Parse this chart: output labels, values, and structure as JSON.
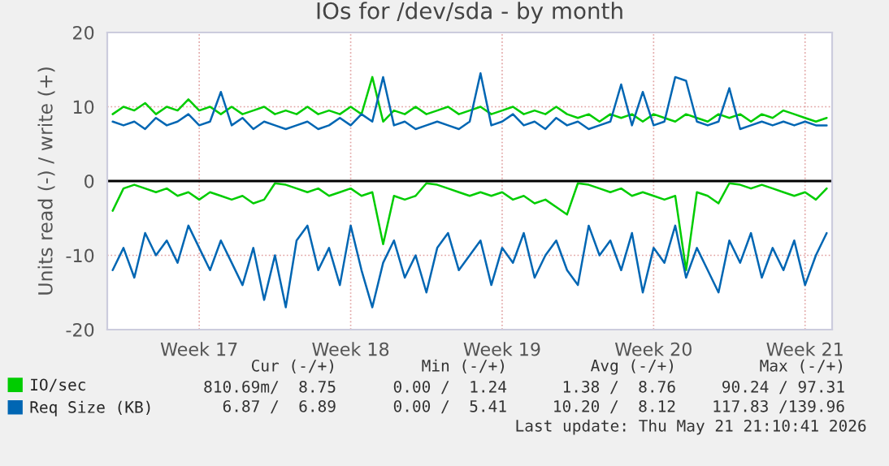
{
  "chart_data": {
    "type": "line",
    "title": "IOs for /dev/sda - by month",
    "ylabel": "Units read (-) / write (+)",
    "categories": [
      null,
      null,
      null,
      null,
      null,
      null,
      null,
      null,
      "Week 17",
      null,
      null,
      null,
      null,
      null,
      null,
      null,
      null,
      null,
      null,
      null,
      null,
      null,
      "Week 18",
      null,
      null,
      null,
      null,
      null,
      null,
      null,
      null,
      null,
      null,
      null,
      null,
      null,
      "Week 19",
      null,
      null,
      null,
      null,
      null,
      null,
      null,
      null,
      null,
      null,
      null,
      null,
      null,
      "Week 20",
      null,
      null,
      null,
      null,
      null,
      null,
      null,
      null,
      null,
      null,
      null,
      null,
      null,
      "Week 21",
      null,
      null
    ],
    "series": [
      {
        "name": "IO/sec",
        "color": "#00cc00",
        "values": [
          9,
          10,
          9.5,
          10.5,
          9,
          10,
          9.5,
          11,
          9.5,
          10,
          9,
          10,
          9,
          9.5,
          10,
          9,
          9.5,
          9,
          10,
          9,
          9.5,
          9,
          10,
          9,
          14,
          8,
          9.5,
          9,
          10,
          9,
          9.5,
          10,
          9,
          9.5,
          10,
          9,
          9.5,
          10,
          9,
          9.5,
          9,
          10,
          9,
          8.5,
          9,
          8,
          9,
          8.5,
          9,
          8,
          9,
          8.5,
          8,
          9,
          8.5,
          8,
          9,
          8.5,
          9,
          8,
          9,
          8.5,
          9.5,
          9,
          8.5,
          8,
          8.5
        ]
      },
      {
        "color": "#00cc00",
        "values": [
          -4,
          -1,
          -0.5,
          -1,
          -1.5,
          -1,
          -2,
          -1.5,
          -2.5,
          -1.5,
          -2,
          -2.5,
          -2,
          -3,
          -2.5,
          -0.3,
          -0.5,
          -1,
          -1.5,
          -1,
          -2,
          -1.5,
          -1,
          -2,
          -1.5,
          -8.5,
          -2,
          -2.5,
          -2,
          -0.3,
          -0.5,
          -1,
          -1.5,
          -2,
          -1.5,
          -2,
          -1.5,
          -2.5,
          -2,
          -3,
          -2.5,
          -3.5,
          -4.5,
          -0.3,
          -0.5,
          -1,
          -1.5,
          -1,
          -2,
          -1.5,
          -2,
          -2.5,
          -2,
          -12,
          -1.5,
          -2,
          -3,
          -0.3,
          -0.5,
          -1,
          -0.5,
          -1,
          -1.5,
          -2,
          -1.5,
          -2.5,
          -1
        ]
      },
      {
        "name": "Req Size (KB)",
        "color": "#0066b3",
        "values": [
          8,
          7.5,
          8,
          7,
          8.5,
          7.5,
          8,
          9,
          7.5,
          8,
          12,
          7.5,
          8.5,
          7,
          8,
          7.5,
          7,
          7.5,
          8,
          7,
          7.5,
          8.5,
          7.5,
          9,
          8,
          14,
          7.5,
          8,
          7,
          7.5,
          8,
          7.5,
          7,
          8,
          14.5,
          7.5,
          8,
          9,
          7.5,
          8,
          7,
          8.5,
          7.5,
          8,
          7,
          7.5,
          8,
          13,
          7.5,
          12,
          7.5,
          8,
          14,
          13.5,
          8,
          7.5,
          8,
          12.5,
          7,
          7.5,
          8,
          7.5,
          8,
          7.5,
          8,
          7.5,
          7.5
        ]
      },
      {
        "color": "#0066b3",
        "values": [
          -12,
          -9,
          -13,
          -7,
          -10,
          -8,
          -11,
          -6,
          -9,
          -12,
          -8,
          -11,
          -14,
          -9,
          -16,
          -10,
          -17,
          -8,
          -6,
          -12,
          -9,
          -14,
          -6,
          -12,
          -17,
          -11,
          -8,
          -13,
          -10,
          -15,
          -9,
          -7,
          -12,
          -10,
          -8,
          -14,
          -9,
          -11,
          -7,
          -13,
          -10,
          -8,
          -12,
          -14,
          -6,
          -10,
          -8,
          -12,
          -7,
          -15,
          -9,
          -11,
          -6,
          -13,
          -9,
          -12,
          -15,
          -8,
          -11,
          -7,
          -13,
          -9,
          -12,
          -8,
          -14,
          -10,
          -7
        ]
      }
    ],
    "ylim": [
      -20,
      20
    ],
    "yticks": [
      -20,
      -10,
      0,
      10,
      20
    ],
    "ref_lines": [
      {
        "axis": "y",
        "value": 0,
        "color": "#000000"
      }
    ],
    "grid": true,
    "legend": "bottom left",
    "annotations": [
      "Cur (-/+)",
      "Min (-/+)",
      "Avg (-/+)",
      "Max (-/+)",
      "810.69m/  8.75",
      "0.00 /  1.24",
      "1.38 /  8.76",
      "90.24 / 97.31",
      "6.87 /  6.89",
      "0.00 /  5.41",
      "10.20 /  8.12",
      "117.83 /139.96",
      "Last update: Thu May 21 21:10:41 2026"
    ]
  }
}
